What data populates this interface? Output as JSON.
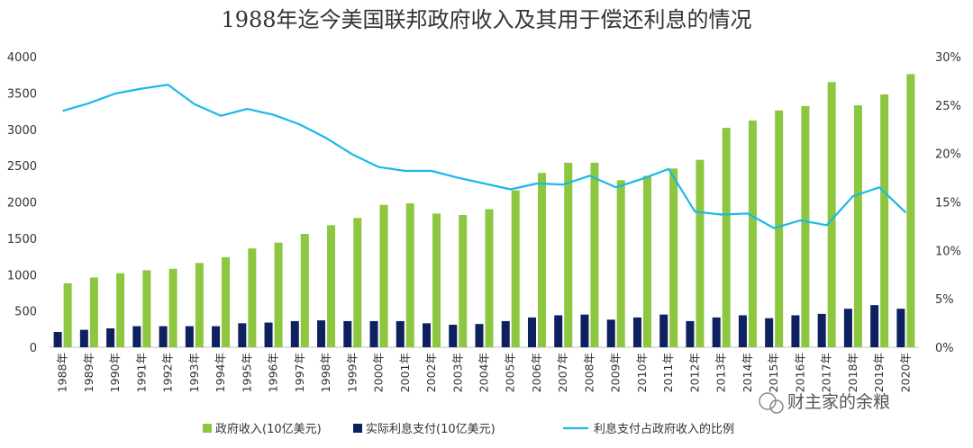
{
  "chart_data": {
    "type": "bar+line",
    "title": "1988年迄今美国联邦政府收入及其用于偿还利息的情况",
    "categories": [
      "1988年",
      "1989年",
      "1990年",
      "1991年",
      "1992年",
      "1993年",
      "1994年",
      "1995年",
      "1996年",
      "1997年",
      "1998年",
      "1999年",
      "2000年",
      "2001年",
      "2002年",
      "2003年",
      "2004年",
      "2005年",
      "2006年",
      "2007年",
      "2008年",
      "2009年",
      "2010年",
      "2011年",
      "2012年",
      "2013年",
      "2014年",
      "2015年",
      "2016年",
      "2017年",
      "2018年",
      "2019年",
      "2020年"
    ],
    "y_left": {
      "ticks": [
        "0",
        "500",
        "1000",
        "1500",
        "2000",
        "2500",
        "3000",
        "3500",
        "4000"
      ],
      "lim": [
        0,
        4000
      ]
    },
    "y_right": {
      "ticks": [
        "0%",
        "5%",
        "10%",
        "15%",
        "20%",
        "25%",
        "30%"
      ],
      "lim": [
        0,
        30
      ]
    },
    "series": [
      {
        "name": "政府收入(10亿美元)",
        "kind": "bar",
        "color": "#8dc63f",
        "values": [
          880,
          960,
          1020,
          1060,
          1080,
          1160,
          1240,
          1360,
          1440,
          1560,
          1680,
          1780,
          1960,
          1980,
          1840,
          1820,
          1900,
          2160,
          2400,
          2540,
          2540,
          2300,
          2360,
          2460,
          2580,
          3020,
          3120,
          3260,
          3320,
          3650,
          3330,
          3480,
          3760
        ]
      },
      {
        "name": "实际利息支付(10亿美元)",
        "kind": "bar",
        "color": "#0d2060",
        "values": [
          210,
          240,
          260,
          290,
          290,
          290,
          290,
          330,
          340,
          360,
          370,
          360,
          360,
          360,
          330,
          310,
          320,
          360,
          410,
          440,
          450,
          380,
          410,
          450,
          360,
          410,
          440,
          400,
          440,
          460,
          530,
          580,
          530
        ]
      },
      {
        "name": "利息支付占政府收入的比例",
        "kind": "line",
        "axis": "right",
        "color": "#1ab8ea",
        "values": [
          24.4,
          25.2,
          26.2,
          26.7,
          27.1,
          25.1,
          23.9,
          24.6,
          24.0,
          23.0,
          21.6,
          19.9,
          18.6,
          18.2,
          18.2,
          17.5,
          16.9,
          16.3,
          16.9,
          16.8,
          17.7,
          16.5,
          17.4,
          18.4,
          14.0,
          13.7,
          13.8,
          12.3,
          13.1,
          12.6,
          15.6,
          16.5,
          13.9
        ]
      }
    ]
  },
  "watermark": {
    "text": "财主家的余粮"
  }
}
